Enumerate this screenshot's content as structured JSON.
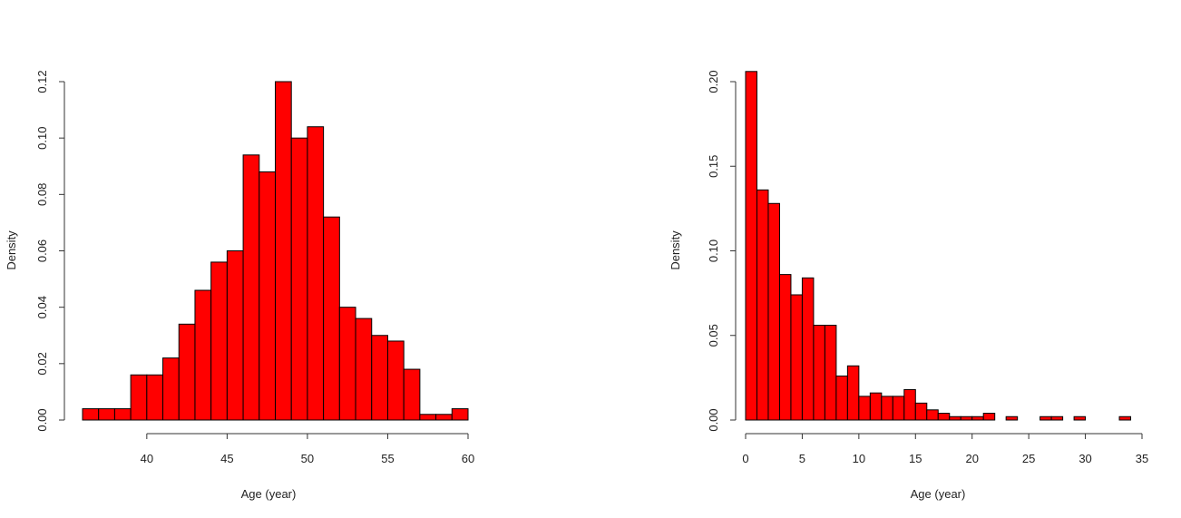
{
  "chart_data": [
    {
      "type": "bar",
      "xlabel": "Age (year)",
      "ylabel": "Density",
      "xlim": [
        36,
        60
      ],
      "ylim": [
        0,
        0.12
      ],
      "xticks": [
        40,
        45,
        50,
        55,
        60
      ],
      "xtick_labels": [
        "40",
        "45",
        "50",
        "55",
        "60"
      ],
      "yticks": [
        0,
        0.02,
        0.04,
        0.06,
        0.08,
        0.1,
        0.12
      ],
      "ytick_labels": [
        "0.00",
        "0.02",
        "0.04",
        "0.06",
        "0.08",
        "0.10",
        "0.12"
      ],
      "grid": false,
      "bar_color": "#ff0000",
      "bins": [
        {
          "x0": 36,
          "x1": 37,
          "value": 0.004
        },
        {
          "x0": 37,
          "x1": 38,
          "value": 0.004
        },
        {
          "x0": 38,
          "x1": 39,
          "value": 0.004
        },
        {
          "x0": 39,
          "x1": 40,
          "value": 0.016
        },
        {
          "x0": 40,
          "x1": 41,
          "value": 0.016
        },
        {
          "x0": 41,
          "x1": 42,
          "value": 0.022
        },
        {
          "x0": 42,
          "x1": 43,
          "value": 0.034
        },
        {
          "x0": 43,
          "x1": 44,
          "value": 0.046
        },
        {
          "x0": 44,
          "x1": 45,
          "value": 0.056
        },
        {
          "x0": 45,
          "x1": 46,
          "value": 0.06
        },
        {
          "x0": 46,
          "x1": 47,
          "value": 0.094
        },
        {
          "x0": 47,
          "x1": 48,
          "value": 0.088
        },
        {
          "x0": 48,
          "x1": 49,
          "value": 0.12
        },
        {
          "x0": 49,
          "x1": 50,
          "value": 0.1
        },
        {
          "x0": 50,
          "x1": 51,
          "value": 0.104
        },
        {
          "x0": 51,
          "x1": 52,
          "value": 0.072
        },
        {
          "x0": 52,
          "x1": 53,
          "value": 0.04
        },
        {
          "x0": 53,
          "x1": 54,
          "value": 0.036
        },
        {
          "x0": 54,
          "x1": 55,
          "value": 0.03
        },
        {
          "x0": 55,
          "x1": 56,
          "value": 0.028
        },
        {
          "x0": 56,
          "x1": 57,
          "value": 0.018
        },
        {
          "x0": 57,
          "x1": 58,
          "value": 0.002
        },
        {
          "x0": 58,
          "x1": 59,
          "value": 0.002
        },
        {
          "x0": 59,
          "x1": 60,
          "value": 0.004
        }
      ]
    },
    {
      "type": "bar",
      "xlabel": "Age (year)",
      "ylabel": "Density",
      "xlim": [
        0,
        35
      ],
      "ylim": [
        0,
        0.2
      ],
      "xticks": [
        0,
        5,
        10,
        15,
        20,
        25,
        30,
        35
      ],
      "xtick_labels": [
        "0",
        "5",
        "10",
        "15",
        "20",
        "25",
        "30",
        "35"
      ],
      "yticks": [
        0,
        0.05,
        0.1,
        0.15,
        0.2
      ],
      "ytick_labels": [
        "0.00",
        "0.05",
        "0.10",
        "0.15",
        "0.20"
      ],
      "grid": false,
      "bar_color": "#ff0000",
      "bins": [
        {
          "x0": 0,
          "x1": 1,
          "value": 0.206
        },
        {
          "x0": 1,
          "x1": 2,
          "value": 0.136
        },
        {
          "x0": 2,
          "x1": 3,
          "value": 0.128
        },
        {
          "x0": 3,
          "x1": 4,
          "value": 0.086
        },
        {
          "x0": 4,
          "x1": 5,
          "value": 0.074
        },
        {
          "x0": 5,
          "x1": 6,
          "value": 0.084
        },
        {
          "x0": 6,
          "x1": 7,
          "value": 0.056
        },
        {
          "x0": 7,
          "x1": 8,
          "value": 0.056
        },
        {
          "x0": 8,
          "x1": 9,
          "value": 0.026
        },
        {
          "x0": 9,
          "x1": 10,
          "value": 0.032
        },
        {
          "x0": 10,
          "x1": 11,
          "value": 0.014
        },
        {
          "x0": 11,
          "x1": 12,
          "value": 0.016
        },
        {
          "x0": 12,
          "x1": 13,
          "value": 0.014
        },
        {
          "x0": 13,
          "x1": 14,
          "value": 0.014
        },
        {
          "x0": 14,
          "x1": 15,
          "value": 0.018
        },
        {
          "x0": 15,
          "x1": 16,
          "value": 0.01
        },
        {
          "x0": 16,
          "x1": 17,
          "value": 0.006
        },
        {
          "x0": 17,
          "x1": 18,
          "value": 0.004
        },
        {
          "x0": 18,
          "x1": 19,
          "value": 0.002
        },
        {
          "x0": 19,
          "x1": 20,
          "value": 0.002
        },
        {
          "x0": 20,
          "x1": 21,
          "value": 0.002
        },
        {
          "x0": 21,
          "x1": 22,
          "value": 0.004
        },
        {
          "x0": 22,
          "x1": 23,
          "value": 0.0
        },
        {
          "x0": 23,
          "x1": 24,
          "value": 0.002
        },
        {
          "x0": 24,
          "x1": 25,
          "value": 0.0
        },
        {
          "x0": 25,
          "x1": 26,
          "value": 0.0
        },
        {
          "x0": 26,
          "x1": 27,
          "value": 0.002
        },
        {
          "x0": 27,
          "x1": 28,
          "value": 0.002
        },
        {
          "x0": 28,
          "x1": 29,
          "value": 0.0
        },
        {
          "x0": 29,
          "x1": 30,
          "value": 0.002
        },
        {
          "x0": 30,
          "x1": 31,
          "value": 0.0
        },
        {
          "x0": 31,
          "x1": 32,
          "value": 0.0
        },
        {
          "x0": 32,
          "x1": 33,
          "value": 0.0
        },
        {
          "x0": 33,
          "x1": 34,
          "value": 0.002
        }
      ]
    }
  ]
}
